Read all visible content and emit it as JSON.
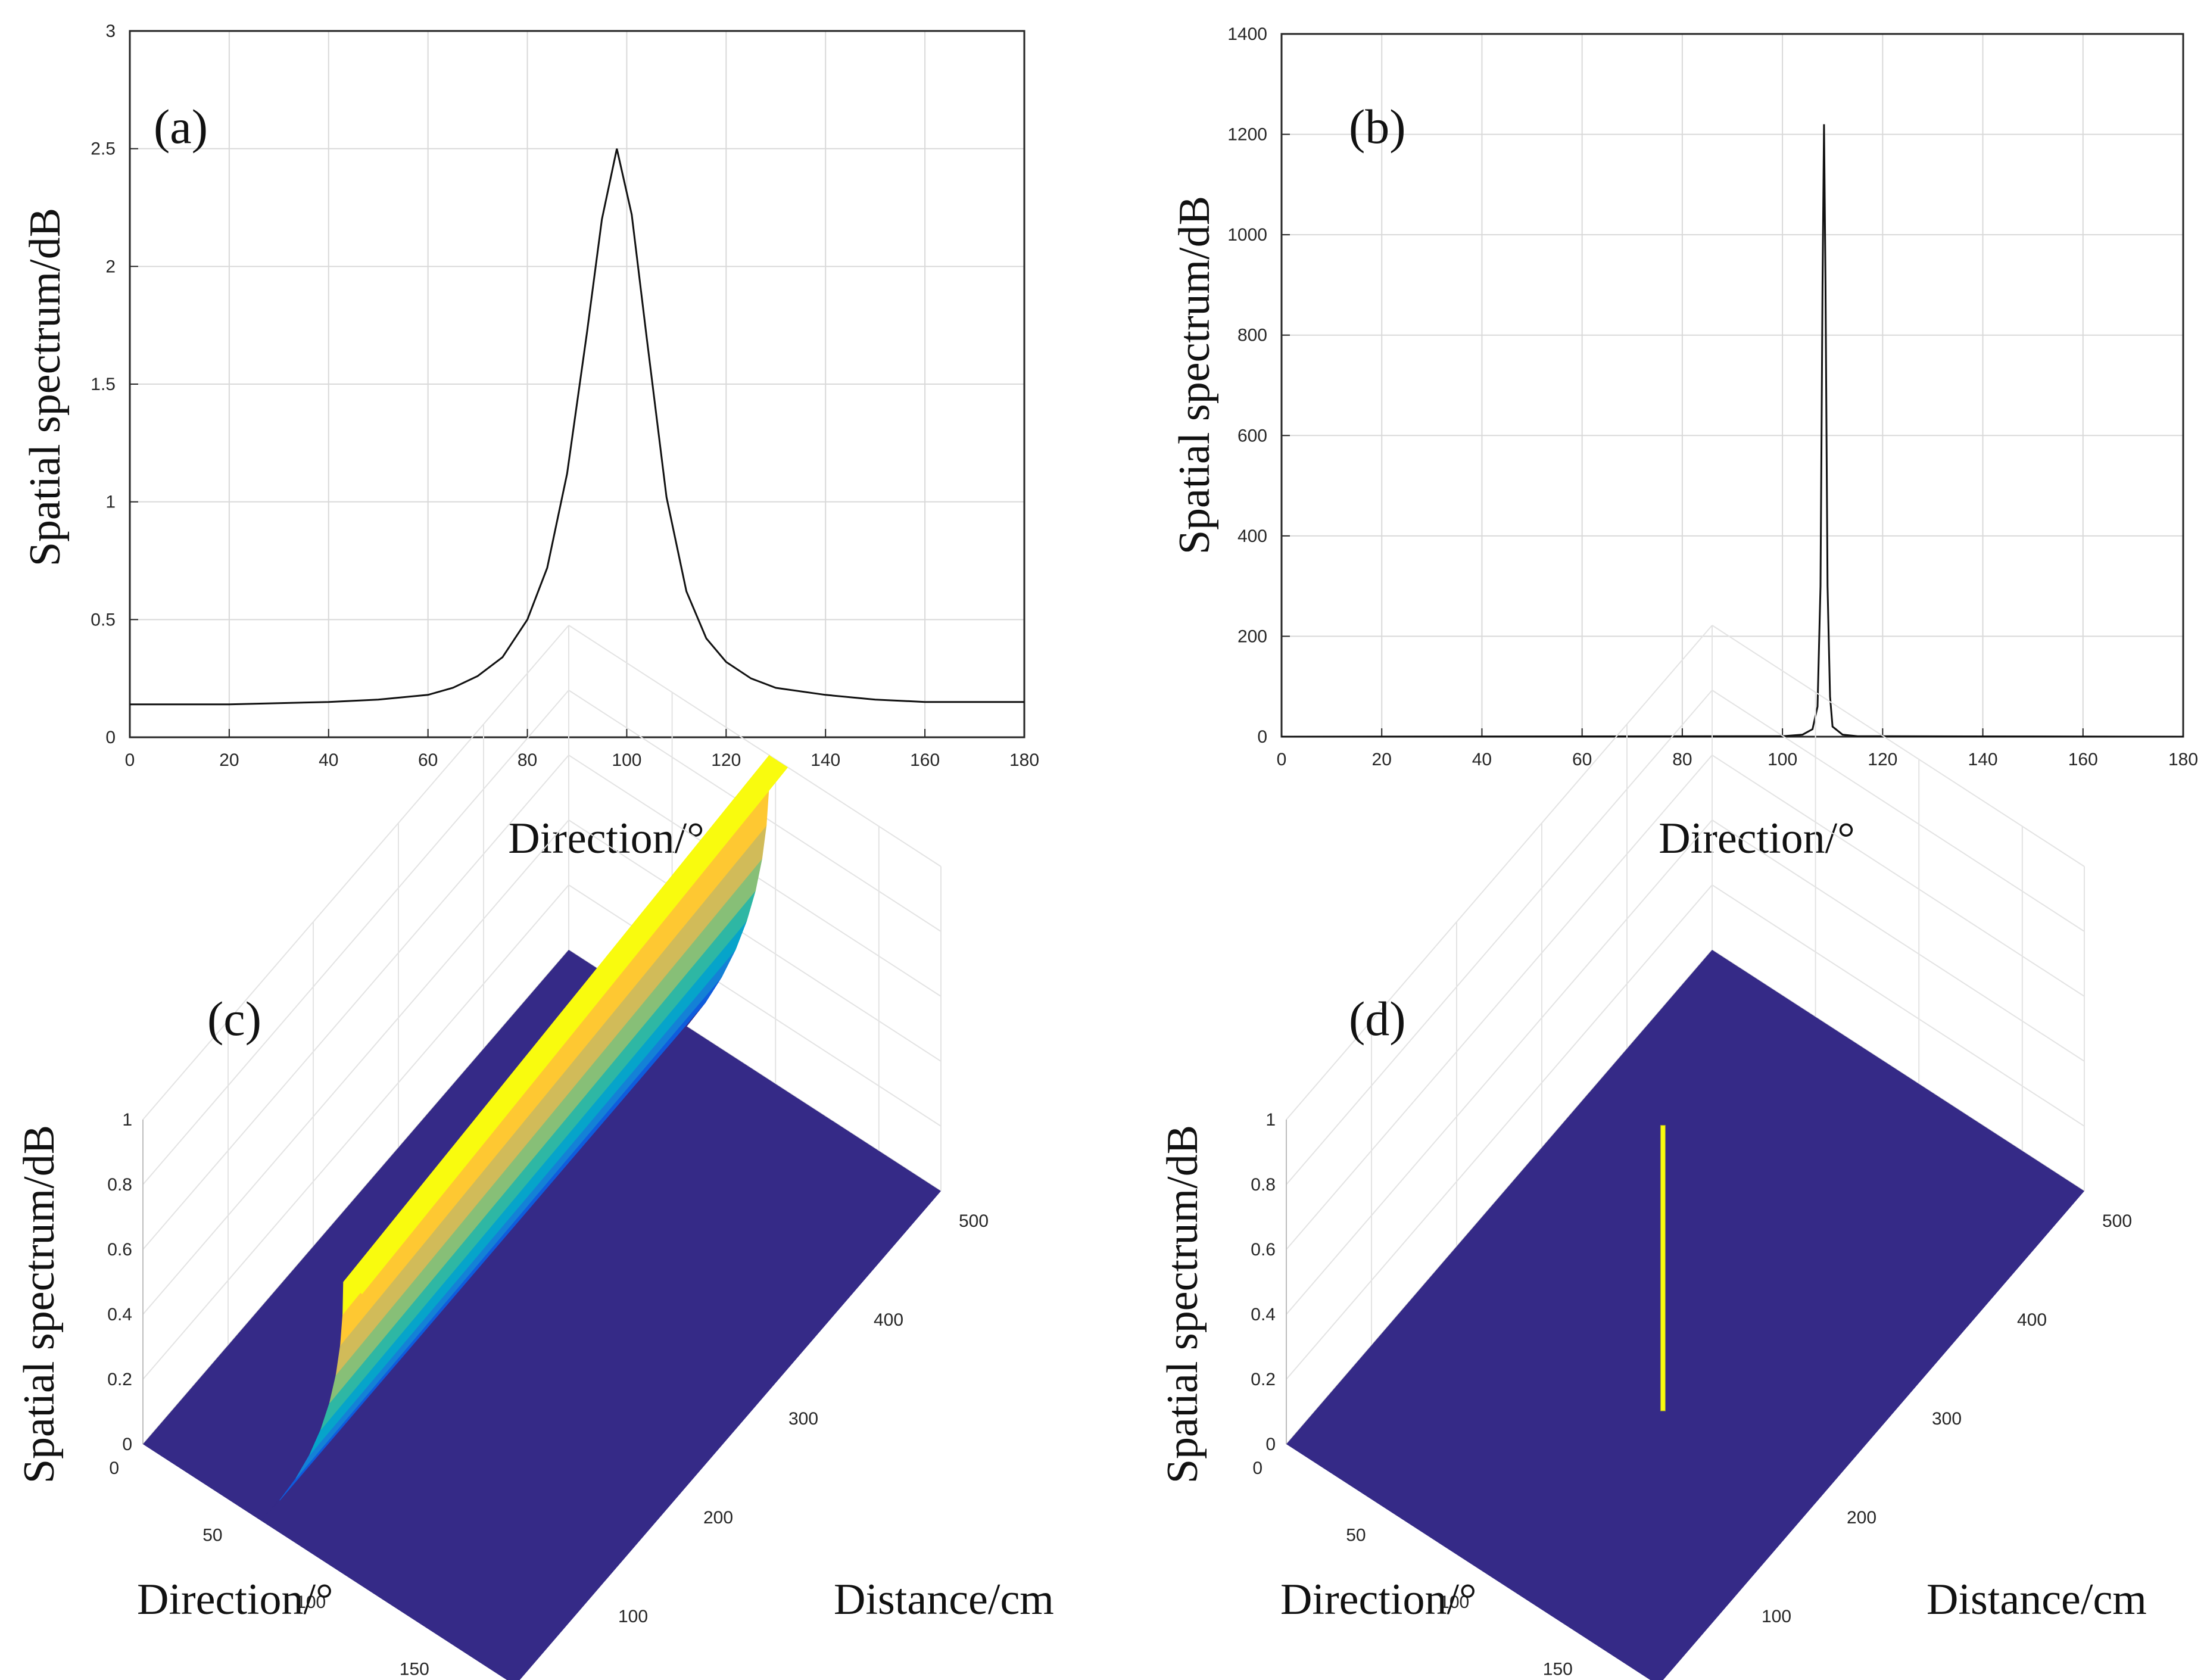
{
  "chart_data": [
    {
      "panel": "a",
      "panel_label": "(a)",
      "type": "line",
      "xlabel": "Direction/°",
      "ylabel": "Spatial spectrum/dB",
      "xlim": [
        0,
        180
      ],
      "ylim": [
        0,
        3
      ],
      "xticks": [
        0,
        20,
        40,
        60,
        80,
        100,
        120,
        140,
        160,
        180
      ],
      "yticks": [
        0,
        0.5,
        1,
        1.5,
        2,
        2.5,
        3
      ],
      "ytick_labels": [
        "0",
        "0.5",
        "1",
        "1.5",
        "2",
        "2.5",
        "3"
      ],
      "grid": true,
      "series": [
        {
          "name": "spectrum",
          "x": [
            0,
            20,
            40,
            50,
            60,
            65,
            70,
            75,
            80,
            84,
            88,
            92,
            95,
            98,
            101,
            104,
            108,
            112,
            116,
            120,
            125,
            130,
            140,
            150,
            160,
            170,
            180
          ],
          "y": [
            0.14,
            0.14,
            0.15,
            0.16,
            0.18,
            0.21,
            0.26,
            0.34,
            0.5,
            0.72,
            1.12,
            1.72,
            2.2,
            2.5,
            2.22,
            1.7,
            1.02,
            0.62,
            0.42,
            0.32,
            0.25,
            0.21,
            0.18,
            0.16,
            0.15,
            0.15,
            0.15
          ]
        }
      ],
      "line_color": "#111111"
    },
    {
      "panel": "b",
      "panel_label": "(b)",
      "type": "line",
      "xlabel": "Direction/°",
      "ylabel": "Spatial spectrum/dB",
      "xlim": [
        0,
        180
      ],
      "ylim": [
        0,
        1400
      ],
      "xticks": [
        0,
        20,
        40,
        60,
        80,
        100,
        120,
        140,
        160,
        180
      ],
      "yticks": [
        0,
        200,
        400,
        600,
        800,
        1000,
        1200,
        1400
      ],
      "ytick_labels": [
        "0",
        "200",
        "400",
        "600",
        "800",
        "1000",
        "1200",
        "1400"
      ],
      "grid": true,
      "series": [
        {
          "name": "spectrum",
          "x": [
            0,
            100,
            104,
            106,
            107,
            107.6,
            108,
            108.3,
            108.6,
            109,
            109.5,
            110,
            112,
            115,
            180
          ],
          "y": [
            0,
            1,
            4,
            15,
            60,
            300,
            900,
            1220,
            900,
            300,
            80,
            20,
            4,
            1,
            0
          ],
          "peak": {
            "x": 108.3,
            "y": 1220
          }
        }
      ],
      "line_color": "#111111"
    },
    {
      "panel": "c",
      "panel_label": "(c)",
      "type": "surface3d",
      "xlabel": "Direction/°",
      "ylabel": "Distance/cm",
      "zlabel": "Spatial spectrum/dB",
      "direction_range": [
        0,
        180
      ],
      "distance_range": [
        0,
        500
      ],
      "z_range": [
        0,
        1
      ],
      "direction_ticks": [
        0,
        50,
        100,
        150
      ],
      "distance_ticks": [
        0,
        100,
        200,
        300,
        400,
        500
      ],
      "z_ticks": [
        0,
        0.2,
        0.4,
        0.6,
        0.8,
        1
      ],
      "z_tick_labels": [
        "0",
        "0.2",
        "0.4",
        "0.6",
        "0.8",
        "1"
      ],
      "description_ridge": {
        "direction_center": 100,
        "distance_from": 0,
        "distance_to": 500,
        "peak_z_start": 0.9,
        "peak_z_end": 1.0
      },
      "colormap": [
        "#352a87",
        "#0f5cdd",
        "#1481d6",
        "#06a4ca",
        "#2eb7a4",
        "#87bf77",
        "#d1bb59",
        "#fec832",
        "#f9fb0e"
      ]
    },
    {
      "panel": "d",
      "panel_label": "(d)",
      "type": "surface3d",
      "xlabel": "Direction/°",
      "ylabel": "Distance/cm",
      "zlabel": "Spatial spectrum/dB",
      "direction_range": [
        0,
        180
      ],
      "distance_range": [
        0,
        500
      ],
      "z_range": [
        0,
        1
      ],
      "direction_ticks": [
        0,
        50,
        100,
        150
      ],
      "distance_ticks": [
        0,
        100,
        200,
        300,
        400,
        500
      ],
      "z_ticks": [
        0,
        0.2,
        0.4,
        0.6,
        0.8,
        1
      ],
      "z_tick_labels": [
        "0",
        "0.2",
        "0.4",
        "0.6",
        "0.8",
        "1"
      ],
      "description_spike": {
        "direction": 108,
        "distance": 180,
        "z": 0.88
      },
      "colormap": [
        "#352a87",
        "#f9fb0e"
      ]
    }
  ]
}
